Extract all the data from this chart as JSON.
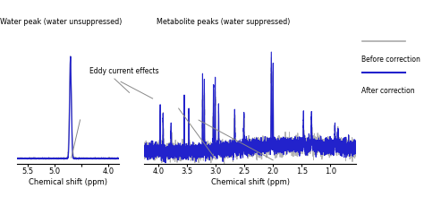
{
  "title_left": "Water peak (water unsuppressed)",
  "title_right": "Metabolite peaks (water suppressed)",
  "xlabel": "Chemical shift (ppm)",
  "legend_before": "Before correction",
  "legend_after": "After correction",
  "color_before": "#aaaaaa",
  "color_after": "#2222cc",
  "annotation_text": "Eddy current effects",
  "bg_color": "#ffffff",
  "left_xticks": [
    5.5,
    5.0,
    4.5,
    4.0
  ],
  "left_xticklabels": [
    "5.5",
    "5.0",
    "",
    "4.0"
  ],
  "right_xticks": [
    4.0,
    3.5,
    3.0,
    2.5,
    2.0,
    1.5,
    1.0
  ],
  "right_xticklabels": [
    "4.0",
    "3.5",
    "3.0",
    "2.5",
    "2.0",
    "1.5",
    "1.0"
  ]
}
